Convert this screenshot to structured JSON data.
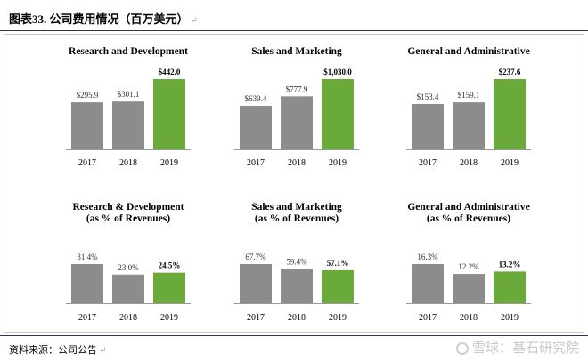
{
  "header": {
    "title": "图表33.  公司费用情况（百万美元）",
    "mark": "↵"
  },
  "footer": {
    "source": "资料来源：公司公告",
    "mark": "↵"
  },
  "watermark": {
    "text": "雪球：基石研究院"
  },
  "colors": {
    "gray": "#8c8c8c",
    "green": "#6aaa3a",
    "axis": "#999999",
    "rule": "#1f3864"
  },
  "chart_data": [
    {
      "type": "bar",
      "title": [
        "Research and Development"
      ],
      "categories": [
        "2017",
        "2018",
        "2019"
      ],
      "values": [
        295.9,
        301.1,
        442.0
      ],
      "labels": [
        "$295.9",
        "$301.1",
        "$442.0"
      ],
      "highlight_index": 2,
      "ylim": [
        0,
        1100
      ]
    },
    {
      "type": "bar",
      "title": [
        "Sales and Marketing"
      ],
      "categories": [
        "2017",
        "2018",
        "2019"
      ],
      "values": [
        639.4,
        777.9,
        1030.0
      ],
      "labels": [
        "$639.4",
        "$777.9",
        "$1,030.0"
      ],
      "highlight_index": 2,
      "ylim": [
        0,
        1100
      ]
    },
    {
      "type": "bar",
      "title": [
        "General and Administrative"
      ],
      "categories": [
        "2017",
        "2018",
        "2019"
      ],
      "values": [
        153.4,
        159.1,
        237.6
      ],
      "labels": [
        "$153.4",
        "$159.1",
        "$237.6"
      ],
      "highlight_index": 2,
      "ylim": [
        0,
        1100
      ]
    },
    {
      "type": "bar",
      "title": [
        "Research & Development",
        "(as % of Revenues)"
      ],
      "categories": [
        "2017",
        "2018",
        "2019"
      ],
      "values": [
        31.4,
        23.0,
        24.5
      ],
      "labels": [
        "31.4%",
        "23.0%",
        "24.5%"
      ],
      "highlight_index": 2,
      "ylim": [
        0,
        75
      ]
    },
    {
      "type": "bar",
      "title": [
        "Sales and Marketing",
        "(as % of Revenues)"
      ],
      "categories": [
        "2017",
        "2018",
        "2019"
      ],
      "values": [
        67.7,
        59.4,
        57.1
      ],
      "labels": [
        "67.7%",
        "59.4%",
        "57.1%"
      ],
      "highlight_index": 2,
      "ylim": [
        0,
        75
      ]
    },
    {
      "type": "bar",
      "title": [
        "General and Administrative",
        "(as % of Revenues)"
      ],
      "categories": [
        "2017",
        "2018",
        "2019"
      ],
      "values": [
        16.3,
        12.2,
        13.2
      ],
      "labels": [
        "16.3%",
        "12.2%",
        "13.2%"
      ],
      "highlight_index": 2,
      "ylim": [
        0,
        75
      ]
    }
  ]
}
